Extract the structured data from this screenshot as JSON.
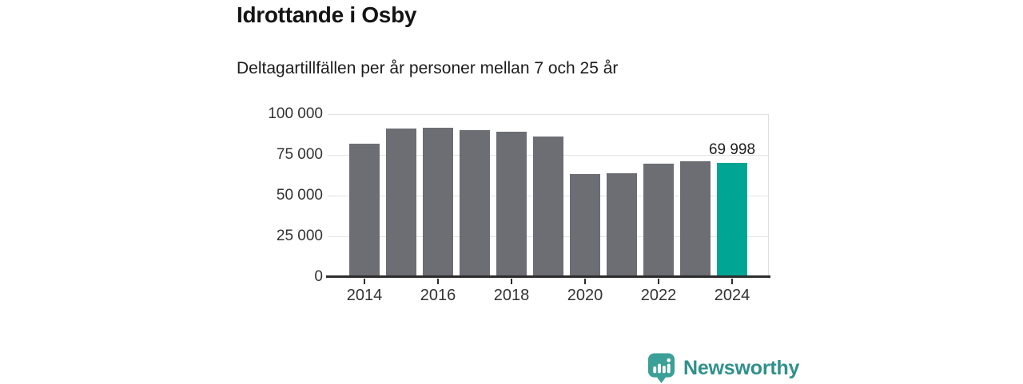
{
  "header": {
    "title": "Idrottande i Osby",
    "subtitle": "Deltagartillfällen per år personer mellan 7 och 25 år"
  },
  "chart_data": {
    "type": "bar",
    "categories": [
      2014,
      2015,
      2016,
      2017,
      2018,
      2019,
      2020,
      2021,
      2022,
      2023,
      2024
    ],
    "values": [
      82000,
      91000,
      91800,
      90200,
      89000,
      86500,
      63300,
      63800,
      69400,
      71200,
      69998
    ],
    "highlight_index": 10,
    "highlight_label": "69 998",
    "y_ticks": [
      0,
      25000,
      50000,
      75000,
      100000
    ],
    "y_tick_labels": [
      "0",
      "25 000",
      "50 000",
      "75 000",
      "100 000"
    ],
    "x_tick_years": [
      2014,
      2016,
      2018,
      2020,
      2022,
      2024
    ],
    "x_tick_labels": [
      "2014",
      "2016",
      "2018",
      "2020",
      "2022",
      "2024"
    ],
    "ylim": [
      0,
      100000
    ],
    "xlabel": "",
    "ylabel": "",
    "bar_color": "#6d6d74",
    "highlight_color": "#00a693",
    "grid": "horizontal"
  },
  "branding": {
    "name": "Newsworthy",
    "icon": "newsworthy-chart-bubble-icon",
    "icon_color": "#3aa098",
    "text_color": "#2f908b"
  }
}
